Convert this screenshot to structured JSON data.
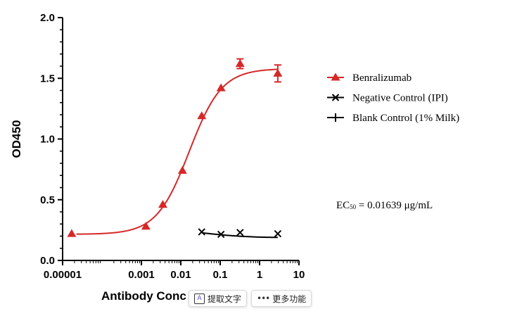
{
  "chart_data": {
    "type": "line",
    "xscale": "log",
    "xlim": [
      1e-05,
      10
    ],
    "ylim": [
      0,
      2.0
    ],
    "xticks": [
      1e-05,
      0.001,
      0.01,
      0.1,
      1,
      10
    ],
    "xtick_labels": [
      "0.00001",
      "0.001",
      "0.01",
      "0.1",
      "1",
      "10"
    ],
    "yticks": [
      0,
      0.5,
      1.0,
      1.5,
      2.0
    ],
    "ytick_labels": [
      "0.0",
      "0.5",
      "1.0",
      "1.5",
      "2.0"
    ],
    "ylabel": "OD450",
    "xlabel": "Antibody Conc",
    "legend_position": "right",
    "series": [
      {
        "name": "Benralizumab",
        "color": "#d62828",
        "marker": "triangle",
        "x": [
          1.7e-05,
          0.0013,
          0.0035,
          0.011,
          0.034,
          0.105,
          0.32,
          2.9
        ],
        "y": [
          0.22,
          0.28,
          0.46,
          0.74,
          1.19,
          1.42,
          1.62,
          1.54
        ],
        "error": [
          0,
          0,
          0,
          0,
          0,
          0,
          0.04,
          0.07
        ],
        "fit": {
          "bottom": 0.215,
          "top": 1.58,
          "ec50": 0.01639,
          "hill": 1.05
        }
      },
      {
        "name": "Negative Control (IPI)",
        "color": "#000000",
        "marker": "x",
        "x": [
          0.034,
          0.105,
          0.32,
          2.9
        ],
        "y": [
          0.235,
          0.215,
          0.23,
          0.22
        ],
        "fit_endpoints": [
          [
            0.034,
            0.228
          ],
          [
            2.9,
            0.19
          ]
        ]
      },
      {
        "name": "Blank Control (1% Milk)",
        "color": "#000000",
        "marker": "plus",
        "x": [],
        "y": []
      }
    ],
    "annotation": {
      "prefix": "EC",
      "sub": "50",
      "value_text": " = 0.01639 μg/mL"
    }
  },
  "toolbar": {
    "extract_text_label": "提取文字",
    "extract_text_icon": "text-extract-icon",
    "more_label": "更多功能",
    "more_icon": "more-dots-icon"
  }
}
